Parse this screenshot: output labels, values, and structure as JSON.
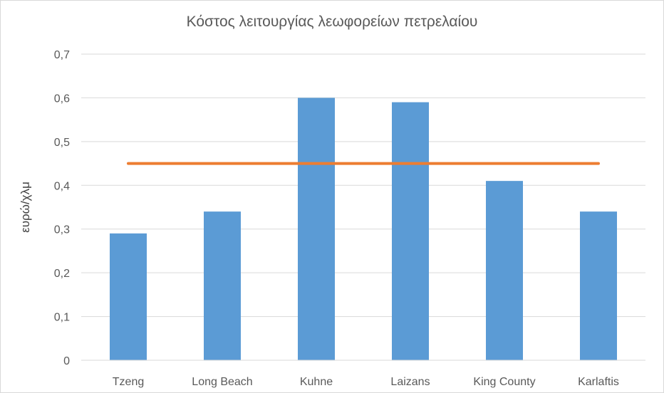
{
  "chart_data": {
    "type": "bar",
    "title": "Κόστος λειτουργίας λεωφορείων πετρελαίου",
    "ylabel": "ευρώ/χλμ",
    "xlabel": "",
    "categories": [
      "Tzeng",
      "Long Beach",
      "Kuhne",
      "Laizans",
      "King County",
      "Karlaftis"
    ],
    "series": [
      {
        "type": "bar",
        "values": [
          0.29,
          0.34,
          0.6,
          0.59,
          0.41,
          0.34
        ],
        "color": "#5b9bd5"
      },
      {
        "type": "line",
        "values": [
          0.45,
          0.45,
          0.45,
          0.45,
          0.45,
          0.45
        ],
        "color": "#ed7d31"
      }
    ],
    "ylim": [
      0,
      0.7
    ],
    "yticks": [
      "0",
      "0,1",
      "0,2",
      "0,3",
      "0,4",
      "0,5",
      "0,6",
      "0,7"
    ],
    "grid": true
  }
}
